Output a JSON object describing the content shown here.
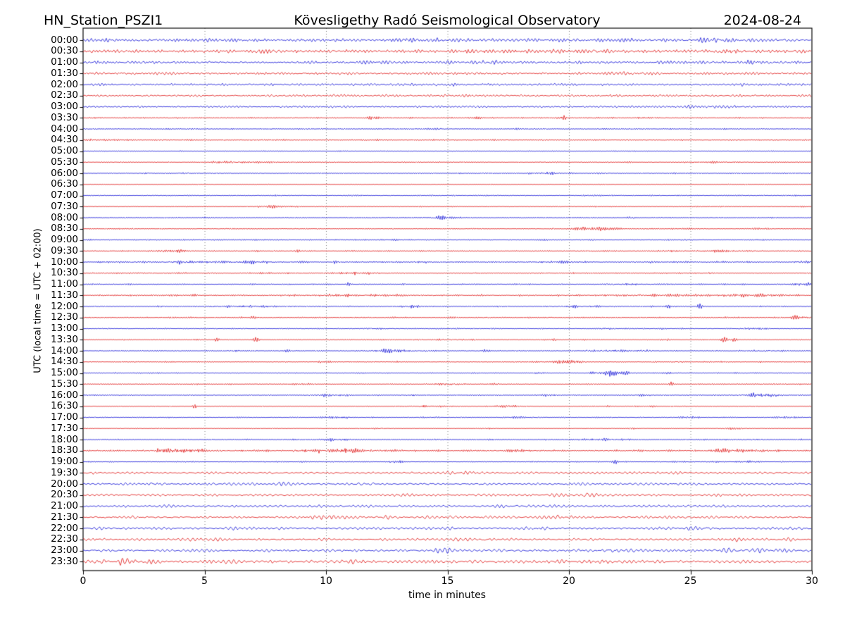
{
  "header": {
    "station": "HN_Station_PSZI1",
    "observatory": "Kövesligethy Radó Seismological Observatory",
    "date": "2024-08-24"
  },
  "chart_data": {
    "type": "line",
    "kind": "helicorder-dayplot",
    "title": "Kövesligethy Radó Seismological Observatory",
    "station": "HN_Station_PSZI1",
    "date": "2024-08-24",
    "xlabel": "time in minutes",
    "ylabel": "UTC (local time = UTC + 02:00)",
    "x_range": [
      0,
      30
    ],
    "x_ticks": [
      "0",
      "5",
      "10",
      "15",
      "20",
      "25",
      "30"
    ],
    "grid": {
      "vertical_minutes": [
        5,
        10,
        15,
        20,
        25
      ],
      "style": "dotted"
    },
    "row_interval_minutes": 30,
    "trace_colors": {
      "blue": "#0f0fd6",
      "red": "#de1111"
    },
    "rows": [
      {
        "label": "00:00",
        "color": "blue",
        "amp": 2.3,
        "texture": "mixed",
        "events": [
          [
            13.5,
            1.4,
            0.8
          ],
          [
            26,
            1.1,
            0.5
          ]
        ]
      },
      {
        "label": "00:30",
        "color": "red",
        "amp": 2.3,
        "texture": "mixed",
        "events": [
          [
            7.5,
            1.2,
            0.6
          ],
          [
            16,
            1.1,
            0.5
          ],
          [
            26.5,
            1.4,
            0.4
          ]
        ]
      },
      {
        "label": "01:00",
        "color": "blue",
        "amp": 1.9,
        "texture": "mixed",
        "events": [
          [
            16.6,
            1.1,
            0.4
          ],
          [
            27.5,
            1.2,
            0.5
          ]
        ]
      },
      {
        "label": "01:30",
        "color": "red",
        "amp": 1.6,
        "texture": "mixed",
        "events": [
          [
            22,
            0.7,
            0.6
          ]
        ]
      },
      {
        "label": "02:00",
        "color": "blue",
        "amp": 1.5,
        "texture": "mixed",
        "events": [
          [
            15,
            0.6,
            1.0
          ]
        ]
      },
      {
        "label": "02:30",
        "color": "red",
        "amp": 1.4,
        "texture": "mixed",
        "events": []
      },
      {
        "label": "03:00",
        "color": "blue",
        "amp": 1.3,
        "texture": "mixed",
        "events": [
          [
            26,
            0.6,
            1.5
          ]
        ]
      },
      {
        "label": "03:30",
        "color": "red",
        "amp": 1.0,
        "texture": "fine",
        "events": [
          [
            11.8,
            1.4,
            0.08
          ],
          [
            16.3,
            1.1,
            0.08
          ],
          [
            19.8,
            2.8,
            0.07
          ],
          [
            23,
            0.7,
            0.2
          ]
        ]
      },
      {
        "label": "04:00",
        "color": "blue",
        "amp": 0.9,
        "texture": "fine",
        "events": [
          [
            14.7,
            0.6,
            0.3
          ],
          [
            18.5,
            0.6,
            0.5
          ]
        ]
      },
      {
        "label": "04:30",
        "color": "red",
        "amp": 0.9,
        "texture": "fine",
        "events": [
          [
            0.8,
            0.8,
            0.6
          ]
        ]
      },
      {
        "label": "05:00",
        "color": "blue",
        "amp": 0.7,
        "texture": "fine",
        "events": []
      },
      {
        "label": "05:30",
        "color": "red",
        "amp": 0.8,
        "texture": "fine",
        "events": [
          [
            6.2,
            1.5,
            0.5
          ],
          [
            26,
            0.6,
            0.8
          ]
        ]
      },
      {
        "label": "06:00",
        "color": "blue",
        "amp": 0.8,
        "texture": "fine",
        "events": [
          [
            2.6,
            1.1,
            0.15
          ],
          [
            4.2,
            0.9,
            0.15
          ],
          [
            19,
            1.3,
            0.4
          ],
          [
            21.2,
            0.8,
            0.2
          ]
        ]
      },
      {
        "label": "06:30",
        "color": "red",
        "amp": 0.6,
        "texture": "fine",
        "events": []
      },
      {
        "label": "07:00",
        "color": "blue",
        "amp": 0.8,
        "texture": "fine",
        "events": []
      },
      {
        "label": "07:30",
        "color": "red",
        "amp": 0.7,
        "texture": "fine",
        "events": [
          [
            7.8,
            1.5,
            0.5
          ]
        ]
      },
      {
        "label": "08:00",
        "color": "blue",
        "amp": 0.8,
        "texture": "fine",
        "events": [
          [
            5.2,
            0.9,
            0.15
          ],
          [
            14.8,
            1.3,
            0.5
          ],
          [
            22.5,
            0.9,
            0.2
          ]
        ]
      },
      {
        "label": "08:30",
        "color": "red",
        "amp": 0.8,
        "texture": "fine",
        "events": [
          [
            21,
            2.0,
            0.7
          ],
          [
            23.2,
            1.0,
            0.2
          ],
          [
            27.8,
            0.9,
            0.3
          ]
        ]
      },
      {
        "label": "09:00",
        "color": "blue",
        "amp": 0.9,
        "texture": "fine",
        "events": [
          [
            24.5,
            0.6,
            0.4
          ]
        ]
      },
      {
        "label": "09:30",
        "color": "red",
        "amp": 0.9,
        "texture": "fine",
        "events": [
          [
            3.6,
            1.7,
            0.4
          ],
          [
            8.8,
            1.2,
            0.1
          ],
          [
            24,
            1.2,
            0.3
          ],
          [
            26.3,
            0.9,
            0.6
          ]
        ]
      },
      {
        "label": "10:00",
        "color": "blue",
        "amp": 1.1,
        "texture": "fine",
        "events": [
          [
            2.5,
            1.1,
            0.15
          ],
          [
            4.1,
            1.4,
            0.5
          ],
          [
            6.8,
            1.3,
            0.8
          ],
          [
            10.4,
            1.7,
            0.1
          ],
          [
            19.5,
            1.1,
            0.6
          ],
          [
            23.4,
            1.0,
            0.15
          ],
          [
            29.7,
            1.2,
            0.2
          ]
        ]
      },
      {
        "label": "10:30",
        "color": "red",
        "amp": 0.9,
        "texture": "fine",
        "events": [
          [
            2.3,
            1.1,
            0.15
          ],
          [
            11.5,
            1.5,
            0.6
          ],
          [
            25.9,
            1.0,
            0.15
          ]
        ]
      },
      {
        "label": "11:00",
        "color": "blue",
        "amp": 0.9,
        "texture": "fine",
        "events": [
          [
            10.9,
            1.9,
            0.08
          ],
          [
            22.4,
            1.2,
            0.7
          ],
          [
            29.6,
            1.3,
            0.3
          ]
        ]
      },
      {
        "label": "11:30",
        "color": "red",
        "amp": 1.1,
        "texture": "fine",
        "events": [
          [
            11,
            1.2,
            1.2
          ],
          [
            23,
            1.1,
            1.5
          ],
          [
            27.3,
            1.2,
            1.0
          ]
        ]
      },
      {
        "label": "12:00",
        "color": "blue",
        "amp": 0.9,
        "texture": "fine",
        "events": [
          [
            6.9,
            1.2,
            0.7
          ],
          [
            13.6,
            1.1,
            0.4
          ],
          [
            20.4,
            1.2,
            0.6
          ],
          [
            24.1,
            2.0,
            0.08
          ],
          [
            25.4,
            2.6,
            0.08
          ],
          [
            28.1,
            1.1,
            0.2
          ]
        ]
      },
      {
        "label": "12:30",
        "color": "red",
        "amp": 0.9,
        "texture": "fine",
        "events": [
          [
            4.6,
            1.0,
            0.15
          ],
          [
            7,
            0.9,
            0.15
          ],
          [
            19.2,
            1.0,
            0.15
          ],
          [
            29.3,
            2.4,
            0.12
          ],
          [
            29.8,
            1.7,
            0.2
          ]
        ]
      },
      {
        "label": "13:00",
        "color": "blue",
        "amp": 0.8,
        "texture": "fine",
        "events": [
          [
            12,
            0.9,
            0.3
          ],
          [
            21.5,
            0.8,
            0.3
          ],
          [
            27.5,
            1.0,
            0.4
          ]
        ]
      },
      {
        "label": "13:30",
        "color": "red",
        "amp": 0.8,
        "texture": "fine",
        "events": [
          [
            5.5,
            2.0,
            0.08
          ],
          [
            7.1,
            2.4,
            0.08
          ],
          [
            15.4,
            0.9,
            0.6
          ],
          [
            19.4,
            1.7,
            0.07
          ],
          [
            24.1,
            1.5,
            0.07
          ],
          [
            26.4,
            2.6,
            0.1
          ],
          [
            26.8,
            1.9,
            0.08
          ]
        ]
      },
      {
        "label": "14:00",
        "color": "blue",
        "amp": 0.8,
        "texture": "fine",
        "events": [
          [
            6.3,
            1.1,
            0.15
          ],
          [
            8.4,
            1.7,
            0.1
          ],
          [
            12.8,
            1.3,
            0.9
          ],
          [
            16.5,
            0.9,
            0.2
          ],
          [
            21.5,
            1.4,
            0.7
          ],
          [
            23.2,
            1.0,
            0.2
          ],
          [
            27.9,
            1.1,
            0.5
          ]
        ]
      },
      {
        "label": "14:30",
        "color": "red",
        "amp": 0.8,
        "texture": "fine",
        "events": [
          [
            9.8,
            0.9,
            0.2
          ],
          [
            13,
            0.8,
            0.2
          ],
          [
            19.8,
            2.4,
            0.5
          ],
          [
            24.5,
            0.9,
            0.2
          ]
        ]
      },
      {
        "label": "15:00",
        "color": "blue",
        "amp": 0.8,
        "texture": "fine",
        "events": [
          [
            18.7,
            0.9,
            0.2
          ],
          [
            21.7,
            3.2,
            0.5
          ],
          [
            24,
            0.9,
            0.15
          ]
        ]
      },
      {
        "label": "15:30",
        "color": "red",
        "amp": 0.8,
        "texture": "fine",
        "events": [
          [
            9.3,
            0.9,
            0.15
          ],
          [
            15,
            2.2,
            0.4
          ],
          [
            17,
            0.9,
            0.15
          ],
          [
            20.8,
            1.1,
            0.1
          ],
          [
            24.2,
            2.0,
            0.08
          ]
        ]
      },
      {
        "label": "16:00",
        "color": "blue",
        "amp": 0.8,
        "texture": "fine",
        "events": [
          [
            10.2,
            1.7,
            0.5
          ],
          [
            13.7,
            1.1,
            0.2
          ],
          [
            19,
            0.9,
            0.2
          ],
          [
            23,
            0.9,
            0.15
          ],
          [
            27.9,
            2.6,
            0.7
          ]
        ]
      },
      {
        "label": "16:30",
        "color": "red",
        "amp": 0.7,
        "texture": "fine",
        "events": [
          [
            4.6,
            2.4,
            0.07
          ],
          [
            14,
            1.3,
            0.4
          ],
          [
            17.5,
            1.3,
            0.3
          ],
          [
            21.6,
            1.1,
            0.1
          ],
          [
            23.5,
            1.0,
            0.1
          ]
        ]
      },
      {
        "label": "17:00",
        "color": "blue",
        "amp": 0.8,
        "texture": "fine",
        "events": [
          [
            10.6,
            1.4,
            0.3
          ],
          [
            14.5,
            0.8,
            0.2
          ],
          [
            18,
            0.8,
            0.5
          ],
          [
            25,
            0.8,
            0.3
          ],
          [
            29,
            0.9,
            0.3
          ]
        ]
      },
      {
        "label": "17:30",
        "color": "red",
        "amp": 0.6,
        "texture": "fine",
        "events": [
          [
            12.2,
            0.9,
            0.15
          ],
          [
            16.8,
            0.8,
            0.15
          ],
          [
            22.5,
            0.9,
            0.15
          ],
          [
            26.6,
            0.8,
            0.5
          ]
        ]
      },
      {
        "label": "18:00",
        "color": "blue",
        "amp": 0.9,
        "texture": "fine",
        "events": [
          [
            10.3,
            1.5,
            0.4
          ],
          [
            14.6,
            0.9,
            0.2
          ],
          [
            21.6,
            1.4,
            0.7
          ],
          [
            27.8,
            1.0,
            0.2
          ]
        ]
      },
      {
        "label": "18:30",
        "color": "red",
        "amp": 1.2,
        "texture": "fine",
        "events": [
          [
            4,
            2.4,
            0.8
          ],
          [
            10.2,
            2.4,
            1.0
          ],
          [
            18,
            0.9,
            0.3
          ],
          [
            26.8,
            2.0,
            0.9
          ]
        ]
      },
      {
        "label": "19:00",
        "color": "blue",
        "amp": 0.8,
        "texture": "fine",
        "events": [
          [
            12.8,
            0.7,
            0.3
          ],
          [
            21.9,
            2.2,
            0.08
          ],
          [
            26.5,
            0.7,
            1.5
          ]
        ]
      },
      {
        "label": "19:30",
        "color": "red",
        "amp": 1.4,
        "texture": "wavy",
        "events": [
          [
            0.5,
            1.5,
            0.4
          ],
          [
            15.7,
            1.7,
            0.4
          ]
        ]
      },
      {
        "label": "20:00",
        "color": "blue",
        "amp": 1.5,
        "texture": "wavy",
        "events": [
          [
            3.2,
            2.0,
            0.3
          ],
          [
            8.2,
            1.3,
            0.3
          ],
          [
            11.5,
            0.9,
            0.3
          ]
        ]
      },
      {
        "label": "20:30",
        "color": "red",
        "amp": 1.5,
        "texture": "wavy",
        "events": [
          [
            13,
            1.1,
            0.3
          ],
          [
            18.3,
            1.1,
            0.3
          ],
          [
            20.8,
            1.2,
            0.3
          ]
        ]
      },
      {
        "label": "21:00",
        "color": "blue",
        "amp": 1.5,
        "texture": "wavy",
        "events": [
          [
            18,
            0.9,
            0.8
          ],
          [
            25.8,
            0.9,
            0.8
          ]
        ]
      },
      {
        "label": "21:30",
        "color": "red",
        "amp": 1.6,
        "texture": "wavy",
        "events": [
          [
            10,
            2.0,
            0.6
          ],
          [
            12.5,
            1.1,
            0.3
          ],
          [
            19.5,
            1.3,
            0.3
          ]
        ]
      },
      {
        "label": "22:00",
        "color": "blue",
        "amp": 1.6,
        "texture": "wavy",
        "events": [
          [
            19,
            1.2,
            0.8
          ],
          [
            25.5,
            1.1,
            0.5
          ],
          [
            29.3,
            1.4,
            0.5
          ]
        ]
      },
      {
        "label": "22:30",
        "color": "red",
        "amp": 1.6,
        "texture": "wavy",
        "events": [
          [
            0.4,
            1.6,
            0.4
          ],
          [
            4.5,
            1.3,
            0.5
          ],
          [
            16.8,
            1.2,
            0.3
          ],
          [
            26.5,
            1.2,
            0.6
          ]
        ]
      },
      {
        "label": "23:00",
        "color": "blue",
        "amp": 1.7,
        "texture": "wavy",
        "events": [
          [
            14.8,
            1.7,
            0.4
          ],
          [
            21.7,
            1.4,
            0.8
          ],
          [
            28,
            1.5,
            1.2
          ]
        ]
      },
      {
        "label": "23:30",
        "color": "red",
        "amp": 2.2,
        "texture": "wavy",
        "events": [
          [
            1.5,
            1.6,
            1.2
          ],
          [
            10.8,
            2.0,
            0.4
          ],
          [
            21,
            1.3,
            0.5
          ]
        ]
      }
    ]
  }
}
